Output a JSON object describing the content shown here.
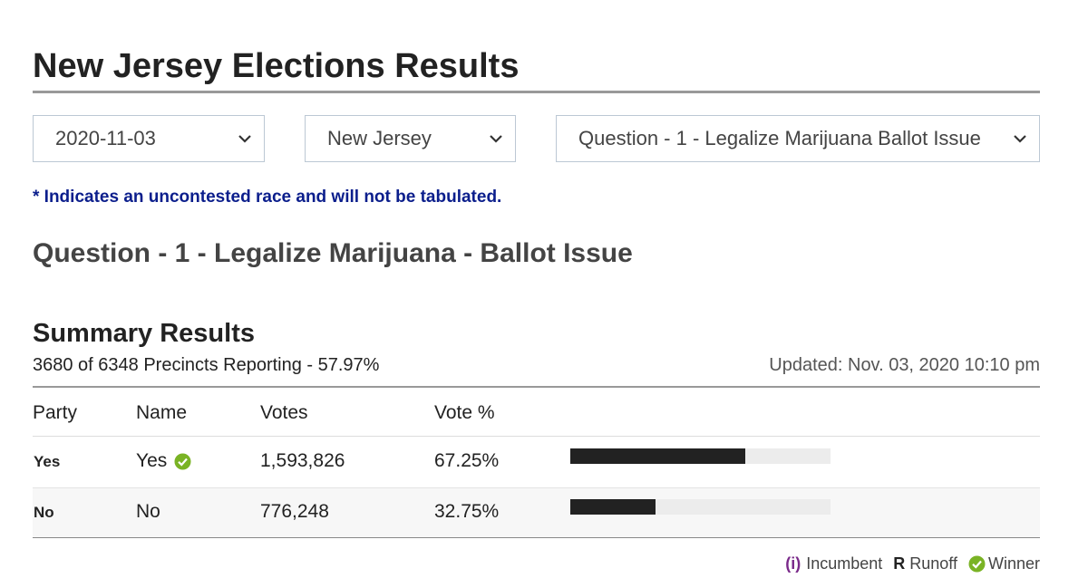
{
  "header": {
    "title": "New Jersey Elections Results"
  },
  "filters": [
    "2020-11-03",
    "New Jersey",
    "Question - 1 - Legalize Marijuana Ballot Issue"
  ],
  "note": "* Indicates an uncontested race and will not be tabulated.",
  "race_title": "Question - 1 - Legalize Marijuana - Ballot Issue",
  "summary": {
    "title": "Summary Results",
    "reporting": "3680 of 6348 Precincts Reporting - 57.97%",
    "updated": "Updated: Nov. 03, 2020 10:10 pm"
  },
  "table": {
    "columns": [
      "Party",
      "Name",
      "Votes",
      "Vote %"
    ],
    "rows": [
      {
        "party": "Yes",
        "name": "Yes",
        "votes": "1,593,826",
        "vote_pct": {
          "value": 67.25,
          "label": "67.25%"
        },
        "winner": true
      },
      {
        "party": "No",
        "name": "No",
        "votes": "776,248",
        "vote_pct": {
          "value": 32.75,
          "label": "32.75%"
        },
        "winner": false
      }
    ]
  },
  "legend": {
    "incumbent_mark": "(i)",
    "incumbent": "Incumbent",
    "runoff_mark": "R",
    "runoff": "Runoff",
    "winner": "Winner"
  }
}
